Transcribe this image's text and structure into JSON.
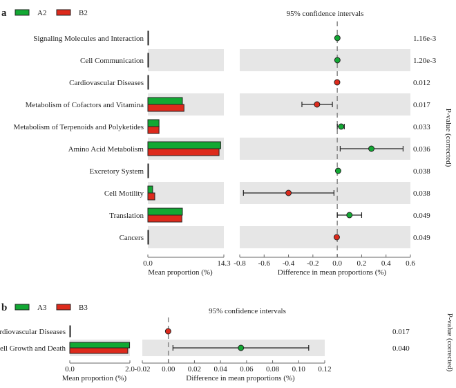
{
  "colors": {
    "groupA": "#12a833",
    "groupB": "#dd2a1c",
    "band": "#e6e6e6",
    "zero_line": "#888888"
  },
  "chart_data": [
    {
      "panel_label": "a",
      "type": "extended-error-bar",
      "legend": [
        {
          "name": "A2",
          "color": "#12a833"
        },
        {
          "name": "B2",
          "color": "#dd2a1c"
        }
      ],
      "title": "95% confidence intervals",
      "bar_xlabel": "Mean proportion (%)",
      "bar_xlim": [
        0,
        14.3
      ],
      "bar_ticks": [
        "0.0",
        "14.3"
      ],
      "diff_xlabel": "Difference in mean proportions (%)",
      "diff_xlim": [
        -0.8,
        0.6
      ],
      "diff_ticks": [
        "-0.8",
        "-0.6",
        "-0.4",
        "-0.2",
        "0.0",
        "0.2",
        "0.4",
        "0.6"
      ],
      "pvalue_label": "P-value (corrected)",
      "rows": [
        {
          "category": "Signaling Molecules and Interaction",
          "meanA": 0.02,
          "meanB": 0.01,
          "diff": 0.001,
          "ci": [
            0.0,
            0.002
          ],
          "higher": "A",
          "pvalue": "1.16e-3"
        },
        {
          "category": "Cell Communication",
          "meanA": 0.02,
          "meanB": 0.01,
          "diff": 0.001,
          "ci": [
            0.0,
            0.002
          ],
          "higher": "A",
          "pvalue": "1.20e-3"
        },
        {
          "category": "Cardiovascular Diseases",
          "meanA": 0.01,
          "meanB": 0.02,
          "diff": -0.001,
          "ci": [
            -0.002,
            0.0
          ],
          "higher": "B",
          "pvalue": "0.012"
        },
        {
          "category": "Metabolism of Cofactors and Vitamina",
          "meanA": 6.5,
          "meanB": 6.8,
          "diff": -0.166,
          "ci": [
            -0.29,
            -0.04
          ],
          "higher": "B",
          "pvalue": "0.017"
        },
        {
          "category": "Metabolism of Terpenoids and Polyketides",
          "meanA": 2.1,
          "meanB": 2.1,
          "diff": 0.032,
          "ci": [
            0.0,
            0.058
          ],
          "higher": "A",
          "pvalue": "0.033"
        },
        {
          "category": "Amino Acid Metabolism",
          "meanA": 13.7,
          "meanB": 13.4,
          "diff": 0.28,
          "ci": [
            0.024,
            0.54
          ],
          "higher": "A",
          "pvalue": "0.036"
        },
        {
          "category": "Excretory System",
          "meanA": 0.03,
          "meanB": 0.02,
          "diff": 0.007,
          "ci": [
            0.003,
            0.011
          ],
          "higher": "A",
          "pvalue": "0.038"
        },
        {
          "category": "Cell Motility",
          "meanA": 0.9,
          "meanB": 1.3,
          "diff": -0.4,
          "ci": [
            -0.77,
            -0.027
          ],
          "higher": "B",
          "pvalue": "0.038"
        },
        {
          "category": "Translation",
          "meanA": 6.5,
          "meanB": 6.4,
          "diff": 0.1,
          "ci": [
            0.0,
            0.2
          ],
          "higher": "A",
          "pvalue": "0.049"
        },
        {
          "category": "Cancers",
          "meanA": 0.1,
          "meanB": 0.12,
          "diff": -0.004,
          "ci": [
            -0.006,
            -0.002
          ],
          "higher": "B",
          "pvalue": "0.049"
        }
      ]
    },
    {
      "panel_label": "b",
      "type": "extended-error-bar",
      "legend": [
        {
          "name": "A3",
          "color": "#12a833"
        },
        {
          "name": "B3",
          "color": "#dd2a1c"
        }
      ],
      "title": "95% confidence intervals",
      "bar_xlabel": "Mean proportion (%)",
      "bar_xlim": [
        0,
        2.0
      ],
      "bar_ticks": [
        "0.0",
        "2.0"
      ],
      "diff_xlabel": "Difference in mean proportions (%)",
      "diff_xlim": [
        -0.02,
        0.12
      ],
      "diff_ticks": [
        "-0.02",
        "0.00",
        "0.02",
        "0.04",
        "0.06",
        "0.08",
        "0.10",
        "0.12"
      ],
      "pvalue_label": "P-value (corrected)",
      "rows": [
        {
          "category": "Cardiovascular Diseases",
          "meanA": 0.005,
          "meanB": 0.008,
          "diff": -0.0002,
          "ci": [
            -0.0004,
            0.0
          ],
          "higher": "B",
          "pvalue": "0.017"
        },
        {
          "category": "Cell Growth and Death",
          "meanA": 1.99,
          "meanB": 1.93,
          "diff": 0.0557,
          "ci": [
            0.0035,
            0.1077
          ],
          "higher": "A",
          "pvalue": "0.040"
        }
      ]
    }
  ]
}
